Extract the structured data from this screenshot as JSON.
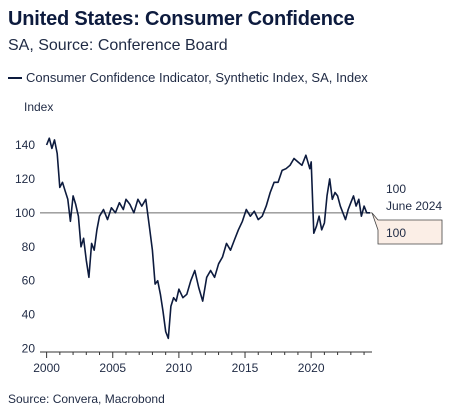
{
  "header": {
    "title": "United States: Consumer Confidence",
    "subtitle": "SA, Source: Conference Board"
  },
  "legend": {
    "label": "Consumer Confidence Indicator, Synthetic Index, SA, Index"
  },
  "footer": {
    "source": "Source: Convera, Macrobond"
  },
  "colors": {
    "series": "#0d1b3e",
    "reference_line": "#6b6b6b",
    "axis": "#333333",
    "label_box_fill": "#fbeee6"
  },
  "chart_data": {
    "type": "line",
    "title": "United States: Consumer Confidence",
    "subtitle": "SA, Source: Conference Board",
    "ylabel": "Index",
    "xlim": [
      1999.5,
      2024.6
    ],
    "ylim": [
      18,
      150
    ],
    "x_ticks": [
      2000,
      2005,
      2010,
      2015,
      2020
    ],
    "x_tick_labels": [
      "2000",
      "2005",
      "2010",
      "2015",
      "2020"
    ],
    "y_ticks": [
      20,
      40,
      60,
      80,
      100,
      120,
      140
    ],
    "y_tick_labels": [
      "20",
      "40",
      "60",
      "80",
      "100",
      "120",
      "140"
    ],
    "reference_line": 100,
    "grid": false,
    "legend_position": "top-left",
    "annotation": {
      "value": "100",
      "date": "June 2024"
    },
    "last_value_label": "100",
    "series": [
      {
        "name": "Consumer Confidence Indicator, Synthetic Index, SA, Index",
        "x": [
          2000.0,
          2000.2,
          2000.4,
          2000.6,
          2000.8,
          2001.0,
          2001.2,
          2001.4,
          2001.6,
          2001.8,
          2002.0,
          2002.2,
          2002.4,
          2002.6,
          2002.8,
          2003.0,
          2003.2,
          2003.4,
          2003.6,
          2003.8,
          2004.0,
          2004.3,
          2004.6,
          2004.9,
          2005.2,
          2005.5,
          2005.8,
          2006.0,
          2006.3,
          2006.6,
          2006.9,
          2007.2,
          2007.5,
          2007.8,
          2008.0,
          2008.2,
          2008.4,
          2008.6,
          2008.8,
          2009.0,
          2009.2,
          2009.4,
          2009.6,
          2009.8,
          2010.0,
          2010.3,
          2010.6,
          2010.9,
          2011.2,
          2011.5,
          2011.8,
          2012.1,
          2012.4,
          2012.7,
          2013.0,
          2013.3,
          2013.6,
          2013.9,
          2014.2,
          2014.5,
          2014.8,
          2015.1,
          2015.4,
          2015.7,
          2016.0,
          2016.3,
          2016.6,
          2016.9,
          2017.2,
          2017.5,
          2017.8,
          2018.1,
          2018.4,
          2018.7,
          2019.0,
          2019.3,
          2019.6,
          2019.9,
          2020.0,
          2020.2,
          2020.4,
          2020.6,
          2020.8,
          2021.0,
          2021.2,
          2021.4,
          2021.6,
          2021.8,
          2022.0,
          2022.2,
          2022.4,
          2022.6,
          2022.8,
          2023.0,
          2023.2,
          2023.4,
          2023.6,
          2023.8,
          2024.0,
          2024.2,
          2024.45
        ],
        "values": [
          140,
          144,
          138,
          143,
          135,
          115,
          118,
          113,
          108,
          95,
          110,
          105,
          98,
          80,
          85,
          72,
          62,
          82,
          78,
          90,
          98,
          102,
          96,
          103,
          100,
          106,
          102,
          108,
          105,
          100,
          108,
          104,
          108,
          90,
          78,
          58,
          60,
          52,
          42,
          30,
          26,
          45,
          50,
          48,
          55,
          50,
          52,
          60,
          66,
          56,
          48,
          62,
          66,
          62,
          70,
          74,
          82,
          78,
          84,
          90,
          95,
          102,
          98,
          101,
          96,
          98,
          104,
          112,
          118,
          118,
          125,
          126,
          128,
          132,
          130,
          128,
          134,
          126,
          130,
          88,
          92,
          98,
          90,
          94,
          110,
          120,
          108,
          112,
          110,
          104,
          100,
          96,
          102,
          106,
          110,
          104,
          108,
          98,
          104,
          100,
          100
        ]
      }
    ]
  }
}
